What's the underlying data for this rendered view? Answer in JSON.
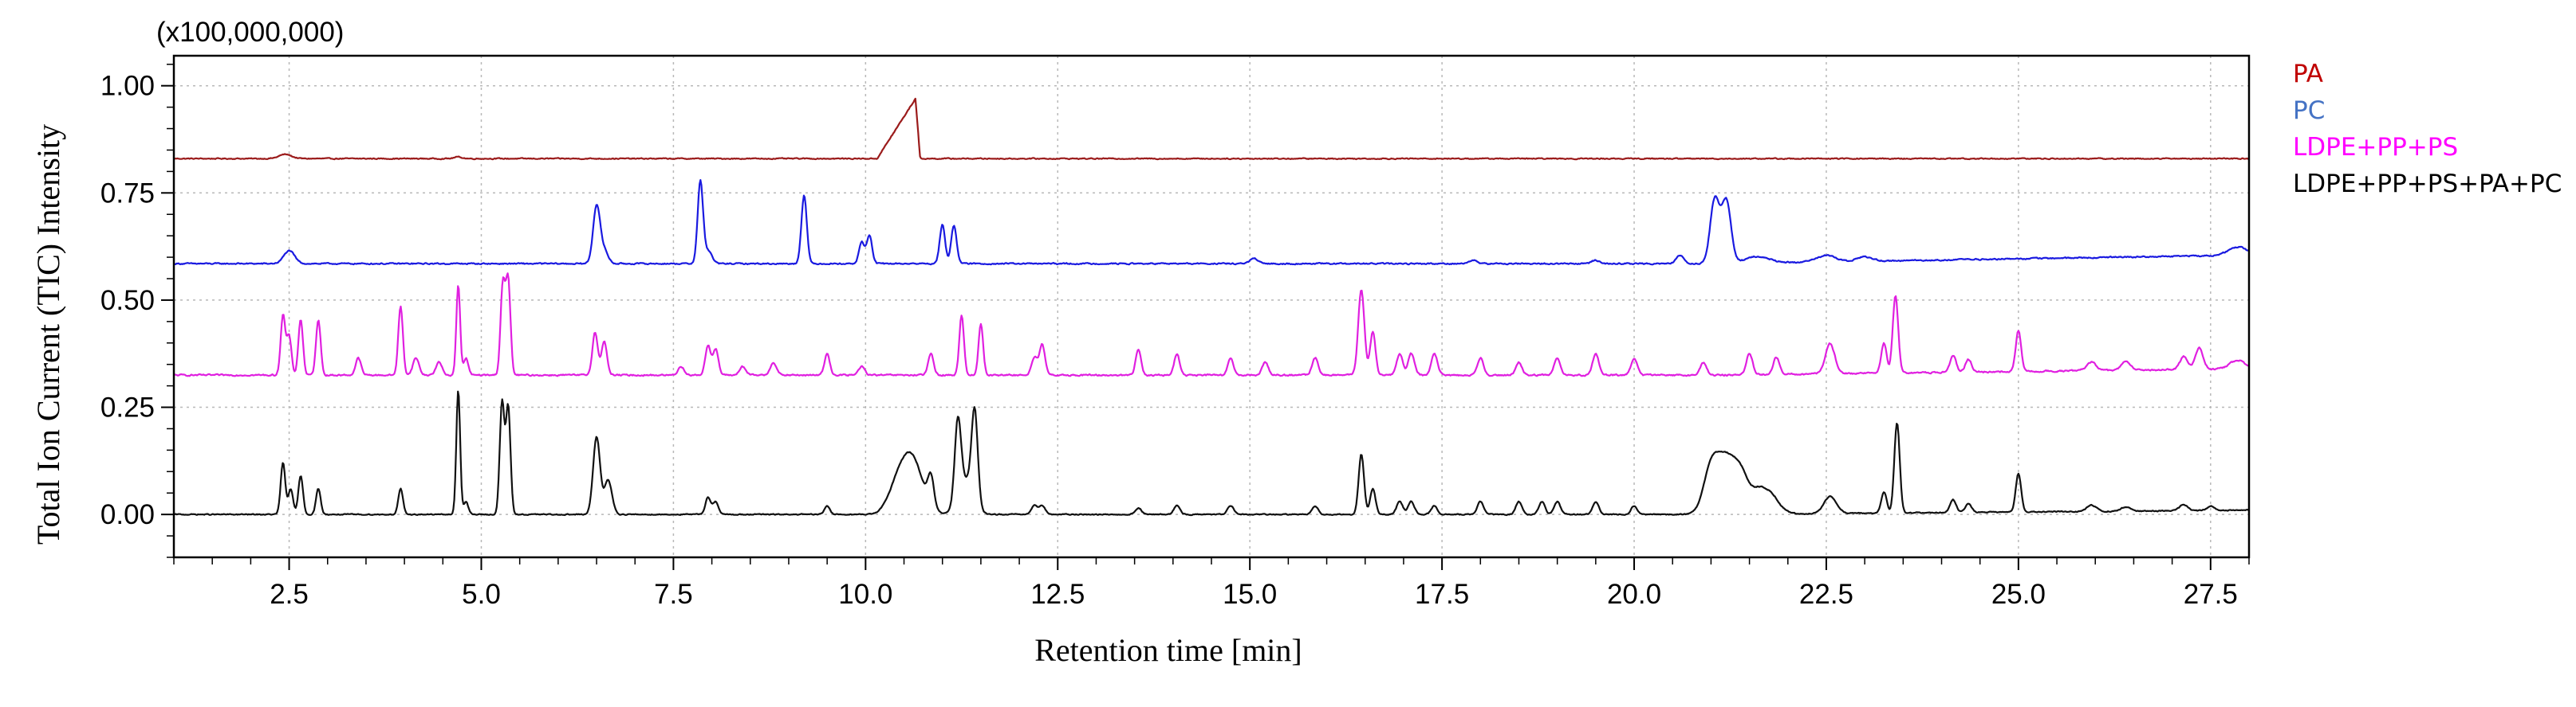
{
  "chart_data": {
    "type": "line",
    "multiplier_label": "(x100,000,000)",
    "xlabel": "Retention time [min]",
    "ylabel": "Total Ion Current (TIC) Intensity",
    "xlim": [
      1.0,
      28.0
    ],
    "ylim": [
      -0.1,
      1.07
    ],
    "x_ticks": [
      {
        "value": 2.5,
        "label": "2.5"
      },
      {
        "value": 5.0,
        "label": "5.0"
      },
      {
        "value": 7.5,
        "label": "7.5"
      },
      {
        "value": 10.0,
        "label": "10.0"
      },
      {
        "value": 12.5,
        "label": "12.5"
      },
      {
        "value": 15.0,
        "label": "15.0"
      },
      {
        "value": 17.5,
        "label": "17.5"
      },
      {
        "value": 20.0,
        "label": "20.0"
      },
      {
        "value": 22.5,
        "label": "22.5"
      },
      {
        "value": 25.0,
        "label": "25.0"
      },
      {
        "value": 27.5,
        "label": "27.5"
      }
    ],
    "y_ticks": [
      {
        "value": 0.0,
        "label": "0.00"
      },
      {
        "value": 0.25,
        "label": "0.25"
      },
      {
        "value": 0.5,
        "label": "0.50"
      },
      {
        "value": 0.75,
        "label": "0.75"
      },
      {
        "value": 1.0,
        "label": "1.00"
      }
    ],
    "grid": true,
    "legend_position": "right",
    "series": [
      {
        "name": "PA",
        "color": "#9b1b1b",
        "legend_color": "#c00000",
        "baseline": 0.83,
        "end_drift": 0.0,
        "noise": 0.002,
        "peaks": [
          [
            2.45,
            0.01,
            0.08
          ],
          [
            4.7,
            0.004,
            0.05
          ]
        ],
        "ramps": [
          [
            10.15,
            10.65,
            0.14
          ]
        ]
      },
      {
        "name": "PC",
        "color": "#1a1ae0",
        "legend_color": "#4472c4",
        "baseline": 0.585,
        "end_drift": 0.02,
        "noise": 0.0025,
        "peaks": [
          [
            2.5,
            0.03,
            0.07
          ],
          [
            6.5,
            0.135,
            0.045
          ],
          [
            6.6,
            0.03,
            0.05
          ],
          [
            7.85,
            0.19,
            0.035
          ],
          [
            7.95,
            0.03,
            0.05
          ],
          [
            9.2,
            0.16,
            0.035
          ],
          [
            9.95,
            0.05,
            0.035
          ],
          [
            10.05,
            0.065,
            0.035
          ],
          [
            11.0,
            0.09,
            0.035
          ],
          [
            11.15,
            0.09,
            0.035
          ],
          [
            15.05,
            0.012,
            0.05
          ],
          [
            17.9,
            0.008,
            0.05
          ],
          [
            19.5,
            0.008,
            0.05
          ],
          [
            20.6,
            0.02,
            0.05
          ],
          [
            21.05,
            0.15,
            0.06
          ],
          [
            21.2,
            0.145,
            0.06
          ],
          [
            21.6,
            0.015,
            0.15
          ],
          [
            22.5,
            0.015,
            0.12
          ],
          [
            23.0,
            0.01,
            0.1
          ],
          [
            27.85,
            0.02,
            0.12
          ]
        ],
        "ramps": []
      },
      {
        "name": "LDPE+PP+PS",
        "color": "#e020e0",
        "legend_color": "#ff00ff",
        "baseline": 0.325,
        "end_drift": 0.015,
        "noise": 0.003,
        "peaks": [
          [
            2.42,
            0.14,
            0.03
          ],
          [
            2.5,
            0.09,
            0.03
          ],
          [
            2.65,
            0.13,
            0.03
          ],
          [
            2.88,
            0.13,
            0.03
          ],
          [
            3.4,
            0.04,
            0.035
          ],
          [
            3.95,
            0.16,
            0.03
          ],
          [
            4.15,
            0.04,
            0.04
          ],
          [
            4.45,
            0.03,
            0.04
          ],
          [
            4.7,
            0.21,
            0.025
          ],
          [
            4.8,
            0.04,
            0.03
          ],
          [
            5.28,
            0.21,
            0.03
          ],
          [
            5.35,
            0.22,
            0.03
          ],
          [
            6.48,
            0.1,
            0.035
          ],
          [
            6.6,
            0.08,
            0.035
          ],
          [
            7.6,
            0.02,
            0.04
          ],
          [
            7.95,
            0.07,
            0.035
          ],
          [
            8.05,
            0.06,
            0.035
          ],
          [
            8.4,
            0.02,
            0.04
          ],
          [
            8.8,
            0.03,
            0.04
          ],
          [
            9.5,
            0.05,
            0.035
          ],
          [
            9.95,
            0.02,
            0.04
          ],
          [
            10.85,
            0.05,
            0.035
          ],
          [
            11.25,
            0.14,
            0.03
          ],
          [
            11.5,
            0.12,
            0.03
          ],
          [
            12.2,
            0.04,
            0.04
          ],
          [
            12.3,
            0.07,
            0.035
          ],
          [
            13.55,
            0.06,
            0.035
          ],
          [
            14.05,
            0.05,
            0.035
          ],
          [
            14.75,
            0.04,
            0.035
          ],
          [
            15.2,
            0.03,
            0.04
          ],
          [
            15.85,
            0.04,
            0.04
          ],
          [
            16.45,
            0.2,
            0.04
          ],
          [
            16.6,
            0.1,
            0.035
          ],
          [
            16.95,
            0.05,
            0.04
          ],
          [
            17.1,
            0.05,
            0.04
          ],
          [
            17.4,
            0.05,
            0.04
          ],
          [
            18.0,
            0.04,
            0.04
          ],
          [
            18.5,
            0.03,
            0.04
          ],
          [
            19.0,
            0.04,
            0.04
          ],
          [
            19.5,
            0.05,
            0.04
          ],
          [
            20.0,
            0.04,
            0.04
          ],
          [
            20.9,
            0.03,
            0.04
          ],
          [
            21.5,
            0.05,
            0.04
          ],
          [
            21.85,
            0.04,
            0.04
          ],
          [
            22.55,
            0.07,
            0.06
          ],
          [
            23.25,
            0.07,
            0.035
          ],
          [
            23.4,
            0.18,
            0.035
          ],
          [
            24.15,
            0.04,
            0.04
          ],
          [
            24.35,
            0.03,
            0.04
          ],
          [
            25.0,
            0.095,
            0.035
          ],
          [
            25.95,
            0.02,
            0.06
          ],
          [
            26.4,
            0.02,
            0.06
          ],
          [
            27.15,
            0.03,
            0.05
          ],
          [
            27.35,
            0.05,
            0.05
          ],
          [
            27.85,
            0.02,
            0.1
          ]
        ],
        "ramps": []
      },
      {
        "name": "LDPE+PP+PS+PA+PC",
        "color": "#111111",
        "legend_color": "#000000",
        "baseline": 0.0,
        "end_drift": 0.01,
        "noise": 0.002,
        "peaks": [
          [
            2.42,
            0.12,
            0.03
          ],
          [
            2.52,
            0.06,
            0.03
          ],
          [
            2.65,
            0.09,
            0.03
          ],
          [
            2.88,
            0.06,
            0.03
          ],
          [
            3.95,
            0.06,
            0.03
          ],
          [
            4.7,
            0.29,
            0.025
          ],
          [
            4.8,
            0.03,
            0.03
          ],
          [
            5.27,
            0.26,
            0.03
          ],
          [
            5.35,
            0.25,
            0.03
          ],
          [
            6.5,
            0.18,
            0.045
          ],
          [
            6.65,
            0.08,
            0.05
          ],
          [
            7.95,
            0.04,
            0.035
          ],
          [
            8.05,
            0.03,
            0.035
          ],
          [
            9.5,
            0.02,
            0.035
          ],
          [
            10.4,
            0.05,
            0.12
          ],
          [
            10.6,
            0.13,
            0.14
          ],
          [
            10.85,
            0.07,
            0.04
          ],
          [
            11.2,
            0.18,
            0.04
          ],
          [
            11.42,
            0.21,
            0.04
          ],
          [
            11.3,
            0.08,
            0.1
          ],
          [
            12.2,
            0.02,
            0.04
          ],
          [
            12.3,
            0.02,
            0.04
          ],
          [
            13.55,
            0.015,
            0.04
          ],
          [
            14.05,
            0.02,
            0.04
          ],
          [
            14.75,
            0.02,
            0.04
          ],
          [
            15.85,
            0.02,
            0.04
          ],
          [
            16.45,
            0.14,
            0.035
          ],
          [
            16.6,
            0.06,
            0.035
          ],
          [
            16.95,
            0.03,
            0.04
          ],
          [
            17.1,
            0.03,
            0.04
          ],
          [
            17.4,
            0.02,
            0.04
          ],
          [
            18.0,
            0.03,
            0.04
          ],
          [
            18.5,
            0.03,
            0.04
          ],
          [
            18.8,
            0.03,
            0.04
          ],
          [
            19.0,
            0.03,
            0.04
          ],
          [
            19.5,
            0.03,
            0.04
          ],
          [
            20.0,
            0.02,
            0.04
          ],
          [
            21.0,
            0.1,
            0.1
          ],
          [
            21.2,
            0.12,
            0.12
          ],
          [
            21.4,
            0.08,
            0.1
          ],
          [
            21.6,
            0.03,
            0.08
          ],
          [
            21.75,
            0.05,
            0.12
          ],
          [
            22.55,
            0.04,
            0.08
          ],
          [
            23.25,
            0.05,
            0.035
          ],
          [
            23.42,
            0.21,
            0.035
          ],
          [
            24.15,
            0.03,
            0.04
          ],
          [
            24.35,
            0.02,
            0.04
          ],
          [
            25.0,
            0.09,
            0.035
          ],
          [
            25.95,
            0.015,
            0.06
          ],
          [
            26.4,
            0.01,
            0.06
          ],
          [
            27.15,
            0.015,
            0.05
          ],
          [
            27.5,
            0.01,
            0.05
          ]
        ],
        "ramps": []
      }
    ]
  }
}
